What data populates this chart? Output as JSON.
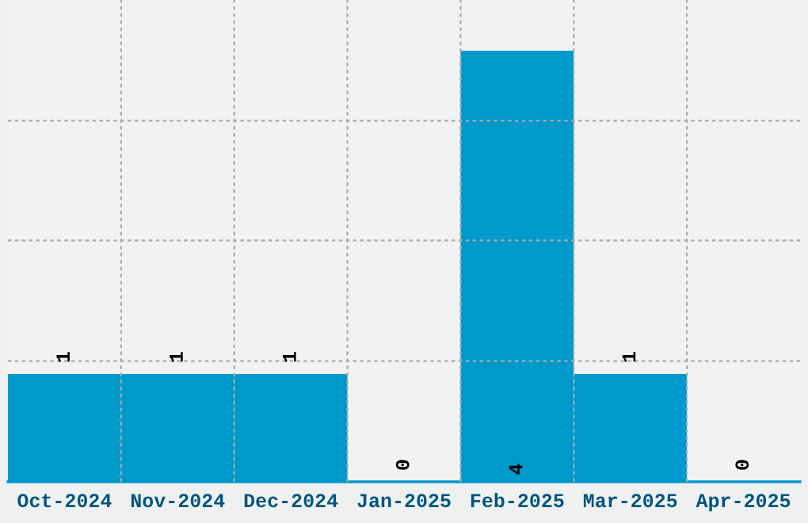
{
  "chart_data": {
    "type": "bar",
    "categories": [
      "Oct-2024",
      "Nov-2024",
      "Dec-2024",
      "Jan-2025",
      "Feb-2025",
      "Mar-2025",
      "Apr-2025"
    ],
    "values": [
      1,
      1,
      1,
      0,
      4,
      1,
      0
    ],
    "color": "#0099cc",
    "ylim": [
      0,
      4.47
    ],
    "yticks": [
      {
        "value": 1.12,
        "label": null
      },
      {
        "value": 2.24,
        "label": null
      },
      {
        "value": 3.35,
        "label": null
      }
    ],
    "tick_labels": "x",
    "data_labels": true,
    "grid": true
  }
}
